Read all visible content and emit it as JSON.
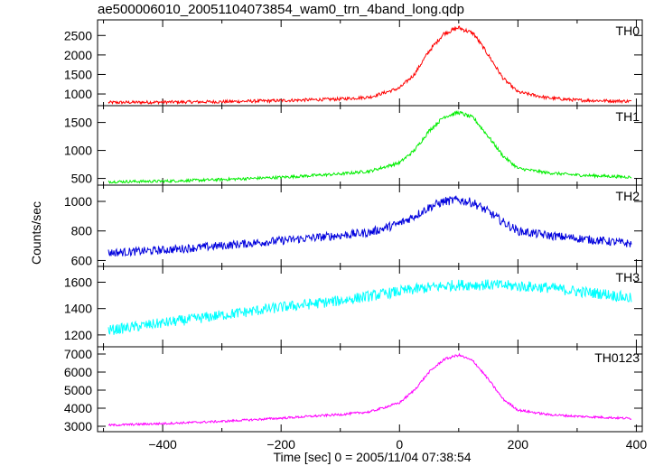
{
  "chart_data": {
    "type": "line",
    "title": "ae500006010_20051104073854_wam0_trn_4band_long.qdp",
    "xlabel": "Time [sec] 0 = 2005/11/04 07:38:54",
    "ylabel": "Counts/sec",
    "xlim": [
      -510,
      410
    ],
    "x_ticks": [
      -400,
      -200,
      0,
      200,
      400
    ],
    "x_tick_labels": [
      "−400",
      "−200",
      "0",
      "200",
      "400"
    ],
    "grid": false,
    "panels": [
      {
        "name": "TH0",
        "color": "#ff0000",
        "ylim": [
          700,
          2900
        ],
        "y_ticks": [
          1000,
          1500,
          2000,
          2500
        ],
        "x": [
          -500,
          -400,
          -300,
          -200,
          -100,
          -50,
          0,
          25,
          50,
          75,
          100,
          125,
          150,
          175,
          200,
          250,
          300,
          400
        ],
        "y": [
          780,
          790,
          800,
          830,
          870,
          920,
          1150,
          1500,
          2100,
          2550,
          2700,
          2550,
          2000,
          1400,
          1050,
          900,
          840,
          810
        ],
        "noise": 40
      },
      {
        "name": "TH1",
        "color": "#00ee00",
        "ylim": [
          380,
          1800
        ],
        "y_ticks": [
          500,
          1000,
          1500
        ],
        "x": [
          -500,
          -400,
          -300,
          -200,
          -100,
          -50,
          0,
          25,
          50,
          75,
          100,
          125,
          150,
          175,
          200,
          250,
          300,
          400
        ],
        "y": [
          440,
          450,
          480,
          520,
          580,
          630,
          780,
          1000,
          1350,
          1600,
          1680,
          1580,
          1250,
          900,
          680,
          600,
          560,
          520
        ],
        "noise": 25
      },
      {
        "name": "TH2",
        "color": "#0000dd",
        "ylim": [
          560,
          1110
        ],
        "y_ticks": [
          600,
          800,
          1000
        ],
        "x": [
          -500,
          -400,
          -300,
          -200,
          -100,
          -50,
          0,
          25,
          50,
          75,
          100,
          125,
          150,
          175,
          200,
          250,
          300,
          400
        ],
        "y": [
          650,
          670,
          700,
          735,
          770,
          790,
          850,
          900,
          960,
          1000,
          1010,
          990,
          930,
          860,
          800,
          770,
          750,
          710
        ],
        "noise": 28
      },
      {
        "name": "TH3",
        "color": "#00ffff",
        "ylim": [
          1110,
          1720
        ],
        "y_ticks": [
          1200,
          1400,
          1600
        ],
        "x": [
          -500,
          -400,
          -300,
          -200,
          -100,
          0,
          50,
          100,
          150,
          200,
          250,
          300,
          350,
          400
        ],
        "y": [
          1230,
          1290,
          1350,
          1410,
          1460,
          1530,
          1560,
          1580,
          1580,
          1570,
          1560,
          1530,
          1510,
          1470
        ],
        "noise": 40
      },
      {
        "name": "TH0123",
        "color": "#ff00ff",
        "ylim": [
          2700,
          7400
        ],
        "y_ticks": [
          3000,
          4000,
          5000,
          6000,
          7000
        ],
        "x": [
          -500,
          -400,
          -300,
          -200,
          -100,
          -50,
          0,
          25,
          50,
          75,
          100,
          125,
          150,
          175,
          200,
          250,
          300,
          400
        ],
        "y": [
          3050,
          3150,
          3270,
          3450,
          3650,
          3800,
          4300,
          5000,
          6000,
          6700,
          6950,
          6600,
          5600,
          4500,
          3900,
          3650,
          3550,
          3420
        ],
        "noise": 60
      }
    ]
  }
}
